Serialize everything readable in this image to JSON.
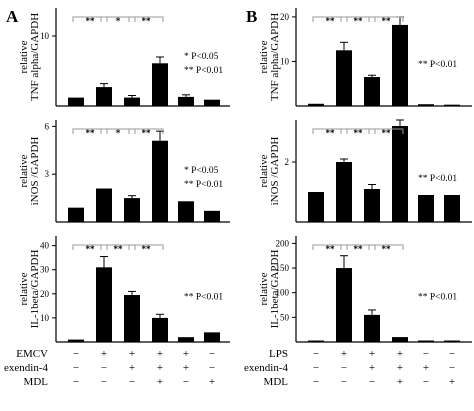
{
  "figure": {
    "panel_labels": [
      "A",
      "B"
    ]
  },
  "chart_data": [
    {
      "type": "bar",
      "panel": "A",
      "ylabel": [
        "relative",
        "TNF alpha/GAPDH"
      ],
      "yticks": [
        10
      ],
      "ylim": [
        0,
        14
      ],
      "values": [
        1.2,
        2.7,
        1.2,
        6.1,
        1.3,
        0.9
      ],
      "errors": [
        0.0,
        0.5,
        0.3,
        0.9,
        0.3,
        0.0
      ],
      "sig_brackets": [
        [
          "0",
          "1",
          "**"
        ],
        [
          "1",
          "2",
          "*"
        ],
        [
          "2",
          "3",
          "**"
        ]
      ],
      "annotation": [
        "* P<0.05",
        "** P<0.01"
      ]
    },
    {
      "type": "bar",
      "panel": "A",
      "ylabel": [
        "relative",
        "iNOS /GAPDH"
      ],
      "yticks": [
        3,
        6
      ],
      "ylim": [
        0,
        6.4
      ],
      "values": [
        0.9,
        2.1,
        1.5,
        5.1,
        1.3,
        0.7
      ],
      "errors": [
        0.0,
        0.0,
        0.15,
        0.6,
        0.0,
        0.0
      ],
      "sig_brackets": [
        [
          "0",
          "1",
          "**"
        ],
        [
          "1",
          "2",
          "*"
        ],
        [
          "2",
          "3",
          "**"
        ]
      ],
      "annotation": [
        "* P<0.05",
        "** P<0.01"
      ]
    },
    {
      "type": "bar",
      "panel": "A",
      "ylabel": [
        "relative",
        "IL-1beta/GAPDH"
      ],
      "yticks": [
        10,
        20,
        30,
        40
      ],
      "ylim": [
        0,
        44
      ],
      "values": [
        1,
        31,
        19.5,
        10,
        2,
        4
      ],
      "errors": [
        0,
        4.5,
        1.5,
        1.5,
        0,
        0
      ],
      "sig_brackets": [
        [
          "0",
          "1",
          "**"
        ],
        [
          "1",
          "2",
          "**"
        ],
        [
          "2",
          "3",
          "**"
        ]
      ],
      "annotation": [
        "** P<0.01"
      ]
    },
    {
      "type": "bar",
      "panel": "B",
      "ylabel": [
        "relative",
        "TNF alpha/GAPDH"
      ],
      "yticks": [
        10,
        20
      ],
      "ylim": [
        0,
        22
      ],
      "values": [
        0.5,
        12.5,
        6.5,
        18.2,
        0.4,
        0.3
      ],
      "errors": [
        0,
        1.8,
        0.4,
        1.8,
        0,
        0
      ],
      "sig_brackets": [
        [
          "0",
          "1",
          "**"
        ],
        [
          "1",
          "2",
          "**"
        ],
        [
          "2",
          "3",
          "**"
        ]
      ],
      "annotation": [
        "** P<0.01"
      ]
    },
    {
      "type": "bar",
      "panel": "B",
      "ylabel": [
        "relative",
        "iNOS /GAPDH"
      ],
      "yticks": [
        2
      ],
      "ylim": [
        0,
        3.4
      ],
      "values": [
        1.0,
        2.0,
        1.1,
        3.2,
        0.9,
        0.9
      ],
      "errors": [
        0,
        0.1,
        0.15,
        0.2,
        0,
        0
      ],
      "sig_brackets": [
        [
          "0",
          "1",
          "**"
        ],
        [
          "1",
          "2",
          "**"
        ],
        [
          "2",
          "3",
          "**"
        ]
      ],
      "annotation": [
        "** P<0.01"
      ]
    },
    {
      "type": "bar",
      "panel": "B",
      "ylabel": [
        "relative",
        "IL-1beta/GAPDH"
      ],
      "yticks": [
        50,
        100,
        150,
        200
      ],
      "ylim": [
        0,
        215
      ],
      "values": [
        3,
        150,
        55,
        10,
        3,
        3
      ],
      "errors": [
        0,
        25,
        10,
        0,
        0,
        0
      ],
      "sig_brackets": [
        [
          "0",
          "1",
          "**"
        ],
        [
          "1",
          "2",
          "**"
        ],
        [
          "2",
          "3",
          "**"
        ]
      ],
      "annotation": [
        "** P<0.01"
      ]
    }
  ],
  "conditions": {
    "A": {
      "rows": [
        {
          "label": "EMCV",
          "marks": [
            "−",
            "+",
            "+",
            "+",
            "+",
            "−"
          ]
        },
        {
          "label": "exendin-4",
          "marks": [
            "−",
            "−",
            "+",
            "+",
            "+",
            "−"
          ]
        },
        {
          "label": "MDL",
          "marks": [
            "−",
            "−",
            "−",
            "+",
            "−",
            "+"
          ]
        }
      ]
    },
    "B": {
      "rows": [
        {
          "label": "LPS",
          "marks": [
            "−",
            "+",
            "+",
            "+",
            "−",
            "−"
          ]
        },
        {
          "label": "exendin-4",
          "marks": [
            "−",
            "−",
            "+",
            "+",
            "+",
            "−"
          ]
        },
        {
          "label": "MDL",
          "marks": [
            "−",
            "−",
            "−",
            "+",
            "−",
            "+"
          ]
        }
      ]
    }
  },
  "colors": {
    "bar": "#000000",
    "axis": "#000000",
    "bracket": "#9a9a9a"
  }
}
